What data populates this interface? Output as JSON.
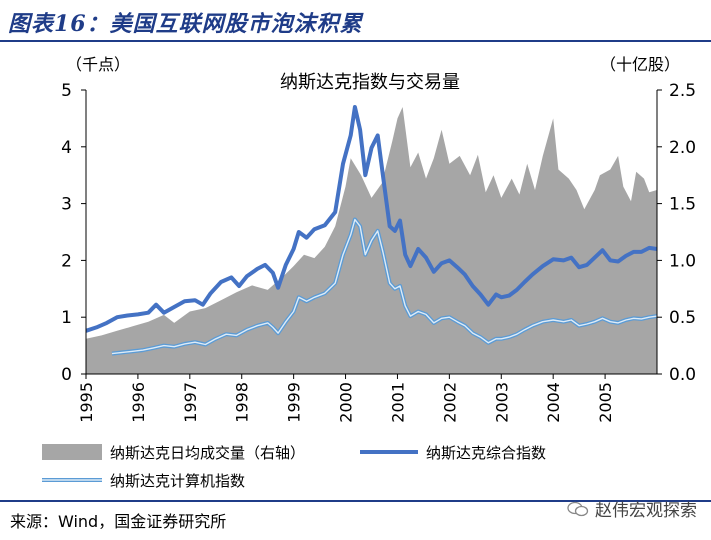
{
  "figure_title": "图表16：美国互联网股市泡沫积累",
  "source": "来源：Wind，国金证券研究所",
  "watermark": "赵伟宏观探索",
  "colors": {
    "area": "#a6a6a6",
    "composite": "#4472c4",
    "computer_outer": "#5b9bd5",
    "computer_inner": "#ddebf7",
    "title": "#1f3c88"
  },
  "chart_data": {
    "type": "line",
    "title": "纳斯达克指数与交易量",
    "left_unit": "（千点）",
    "right_unit": "（十亿股）",
    "y_left": {
      "min": 0,
      "max": 5,
      "ticks": [
        "0",
        "1",
        "2",
        "3",
        "4",
        "5"
      ]
    },
    "y_right": {
      "min": 0,
      "max": 2.5,
      "ticks": [
        "0.0",
        "0.5",
        "1.0",
        "1.5",
        "2.0",
        "2.5"
      ]
    },
    "x_ticks": [
      "1995",
      "1996",
      "1997",
      "1998",
      "1999",
      "2000",
      "2001",
      "2002",
      "2003",
      "2004",
      "2005"
    ],
    "x_range": [
      1995.0,
      2006.0
    ],
    "series": [
      {
        "name": "纳斯达克日均成交量（右轴）",
        "axis": "right",
        "kind": "area",
        "points": [
          [
            1995.0,
            0.31
          ],
          [
            1995.3,
            0.34
          ],
          [
            1995.6,
            0.38
          ],
          [
            1995.9,
            0.42
          ],
          [
            1996.2,
            0.46
          ],
          [
            1996.5,
            0.52
          ],
          [
            1996.7,
            0.45
          ],
          [
            1997.0,
            0.55
          ],
          [
            1997.3,
            0.58
          ],
          [
            1997.6,
            0.65
          ],
          [
            1997.9,
            0.72
          ],
          [
            1998.2,
            0.78
          ],
          [
            1998.5,
            0.74
          ],
          [
            1998.8,
            0.86
          ],
          [
            1999.0,
            0.95
          ],
          [
            1999.2,
            1.05
          ],
          [
            1999.4,
            1.02
          ],
          [
            1999.6,
            1.12
          ],
          [
            1999.8,
            1.3
          ],
          [
            2000.0,
            1.65
          ],
          [
            2000.1,
            1.9
          ],
          [
            2000.3,
            1.75
          ],
          [
            2000.5,
            1.55
          ],
          [
            2000.7,
            1.68
          ],
          [
            2000.9,
            2.05
          ],
          [
            2001.0,
            2.25
          ],
          [
            2001.1,
            2.35
          ],
          [
            2001.25,
            1.82
          ],
          [
            2001.4,
            1.95
          ],
          [
            2001.55,
            1.72
          ],
          [
            2001.7,
            1.9
          ],
          [
            2001.85,
            2.15
          ],
          [
            2002.0,
            1.85
          ],
          [
            2002.2,
            1.92
          ],
          [
            2002.4,
            1.75
          ],
          [
            2002.55,
            1.93
          ],
          [
            2002.7,
            1.6
          ],
          [
            2002.85,
            1.75
          ],
          [
            2003.0,
            1.55
          ],
          [
            2003.2,
            1.72
          ],
          [
            2003.35,
            1.58
          ],
          [
            2003.5,
            1.85
          ],
          [
            2003.65,
            1.62
          ],
          [
            2003.8,
            1.92
          ],
          [
            2004.0,
            2.25
          ],
          [
            2004.1,
            1.8
          ],
          [
            2004.3,
            1.72
          ],
          [
            2004.45,
            1.62
          ],
          [
            2004.6,
            1.45
          ],
          [
            2004.8,
            1.62
          ],
          [
            2004.9,
            1.75
          ],
          [
            2005.1,
            1.8
          ],
          [
            2005.25,
            1.92
          ],
          [
            2005.35,
            1.65
          ],
          [
            2005.5,
            1.52
          ],
          [
            2005.6,
            1.78
          ],
          [
            2005.75,
            1.72
          ],
          [
            2005.85,
            1.6
          ],
          [
            2006.0,
            1.62
          ]
        ]
      },
      {
        "name": "纳斯达克综合指数",
        "axis": "left",
        "kind": "line",
        "points": [
          [
            1995.0,
            0.76
          ],
          [
            1995.2,
            0.82
          ],
          [
            1995.4,
            0.9
          ],
          [
            1995.6,
            1.0
          ],
          [
            1995.8,
            1.03
          ],
          [
            1996.0,
            1.05
          ],
          [
            1996.2,
            1.08
          ],
          [
            1996.35,
            1.22
          ],
          [
            1996.5,
            1.08
          ],
          [
            1996.7,
            1.18
          ],
          [
            1996.9,
            1.28
          ],
          [
            1997.1,
            1.3
          ],
          [
            1997.25,
            1.22
          ],
          [
            1997.4,
            1.42
          ],
          [
            1997.6,
            1.62
          ],
          [
            1997.8,
            1.7
          ],
          [
            1997.95,
            1.55
          ],
          [
            1998.1,
            1.72
          ],
          [
            1998.3,
            1.85
          ],
          [
            1998.45,
            1.92
          ],
          [
            1998.6,
            1.78
          ],
          [
            1998.7,
            1.52
          ],
          [
            1998.85,
            1.92
          ],
          [
            1999.0,
            2.2
          ],
          [
            1999.1,
            2.5
          ],
          [
            1999.25,
            2.4
          ],
          [
            1999.4,
            2.55
          ],
          [
            1999.6,
            2.62
          ],
          [
            1999.8,
            2.85
          ],
          [
            1999.95,
            3.7
          ],
          [
            2000.1,
            4.2
          ],
          [
            2000.18,
            4.7
          ],
          [
            2000.28,
            4.3
          ],
          [
            2000.38,
            3.5
          ],
          [
            2000.5,
            3.98
          ],
          [
            2000.62,
            4.2
          ],
          [
            2000.72,
            3.5
          ],
          [
            2000.85,
            2.6
          ],
          [
            2000.95,
            2.52
          ],
          [
            2001.05,
            2.7
          ],
          [
            2001.15,
            2.1
          ],
          [
            2001.25,
            1.9
          ],
          [
            2001.4,
            2.2
          ],
          [
            2001.55,
            2.05
          ],
          [
            2001.7,
            1.8
          ],
          [
            2001.85,
            1.95
          ],
          [
            2002.0,
            2.0
          ],
          [
            2002.15,
            1.88
          ],
          [
            2002.3,
            1.75
          ],
          [
            2002.45,
            1.55
          ],
          [
            2002.6,
            1.4
          ],
          [
            2002.75,
            1.22
          ],
          [
            2002.9,
            1.4
          ],
          [
            2003.0,
            1.35
          ],
          [
            2003.15,
            1.38
          ],
          [
            2003.3,
            1.48
          ],
          [
            2003.45,
            1.62
          ],
          [
            2003.6,
            1.75
          ],
          [
            2003.8,
            1.9
          ],
          [
            2004.0,
            2.02
          ],
          [
            2004.2,
            2.0
          ],
          [
            2004.35,
            2.05
          ],
          [
            2004.5,
            1.88
          ],
          [
            2004.65,
            1.92
          ],
          [
            2004.8,
            2.05
          ],
          [
            2004.95,
            2.18
          ],
          [
            2005.1,
            2.0
          ],
          [
            2005.25,
            1.98
          ],
          [
            2005.4,
            2.08
          ],
          [
            2005.55,
            2.15
          ],
          [
            2005.7,
            2.15
          ],
          [
            2005.85,
            2.22
          ],
          [
            2006.0,
            2.2
          ]
        ]
      },
      {
        "name": "纳斯达克计算机指数",
        "axis": "left",
        "kind": "line",
        "points": [
          [
            1995.5,
            0.36
          ],
          [
            1995.7,
            0.38
          ],
          [
            1995.9,
            0.4
          ],
          [
            1996.1,
            0.42
          ],
          [
            1996.3,
            0.46
          ],
          [
            1996.5,
            0.5
          ],
          [
            1996.7,
            0.48
          ],
          [
            1996.9,
            0.53
          ],
          [
            1997.1,
            0.56
          ],
          [
            1997.3,
            0.52
          ],
          [
            1997.5,
            0.62
          ],
          [
            1997.7,
            0.7
          ],
          [
            1997.9,
            0.68
          ],
          [
            1998.1,
            0.78
          ],
          [
            1998.3,
            0.85
          ],
          [
            1998.5,
            0.9
          ],
          [
            1998.6,
            0.82
          ],
          [
            1998.7,
            0.72
          ],
          [
            1998.85,
            0.92
          ],
          [
            1999.0,
            1.1
          ],
          [
            1999.1,
            1.35
          ],
          [
            1999.25,
            1.28
          ],
          [
            1999.4,
            1.35
          ],
          [
            1999.6,
            1.42
          ],
          [
            1999.8,
            1.6
          ],
          [
            1999.95,
            2.1
          ],
          [
            2000.1,
            2.45
          ],
          [
            2000.18,
            2.72
          ],
          [
            2000.28,
            2.6
          ],
          [
            2000.38,
            2.1
          ],
          [
            2000.5,
            2.35
          ],
          [
            2000.62,
            2.52
          ],
          [
            2000.72,
            2.15
          ],
          [
            2000.85,
            1.6
          ],
          [
            2000.95,
            1.5
          ],
          [
            2001.05,
            1.55
          ],
          [
            2001.15,
            1.2
          ],
          [
            2001.25,
            1.02
          ],
          [
            2001.4,
            1.1
          ],
          [
            2001.55,
            1.05
          ],
          [
            2001.7,
            0.9
          ],
          [
            2001.85,
            0.98
          ],
          [
            2002.0,
            1.0
          ],
          [
            2002.15,
            0.92
          ],
          [
            2002.3,
            0.85
          ],
          [
            2002.45,
            0.72
          ],
          [
            2002.6,
            0.65
          ],
          [
            2002.75,
            0.55
          ],
          [
            2002.9,
            0.62
          ],
          [
            2003.0,
            0.62
          ],
          [
            2003.15,
            0.65
          ],
          [
            2003.3,
            0.7
          ],
          [
            2003.45,
            0.78
          ],
          [
            2003.6,
            0.85
          ],
          [
            2003.8,
            0.92
          ],
          [
            2004.0,
            0.95
          ],
          [
            2004.2,
            0.92
          ],
          [
            2004.35,
            0.95
          ],
          [
            2004.5,
            0.85
          ],
          [
            2004.65,
            0.88
          ],
          [
            2004.8,
            0.92
          ],
          [
            2004.95,
            0.98
          ],
          [
            2005.1,
            0.92
          ],
          [
            2005.25,
            0.9
          ],
          [
            2005.4,
            0.95
          ],
          [
            2005.55,
            0.98
          ],
          [
            2005.7,
            0.97
          ],
          [
            2005.85,
            1.0
          ],
          [
            2006.0,
            1.02
          ]
        ]
      }
    ],
    "legend": [
      {
        "label": "纳斯达克日均成交量（右轴）",
        "style": "area"
      },
      {
        "label": "纳斯达克综合指数",
        "style": "thick-line"
      },
      {
        "label": "纳斯达克计算机指数",
        "style": "double-line"
      }
    ],
    "grid": false
  }
}
